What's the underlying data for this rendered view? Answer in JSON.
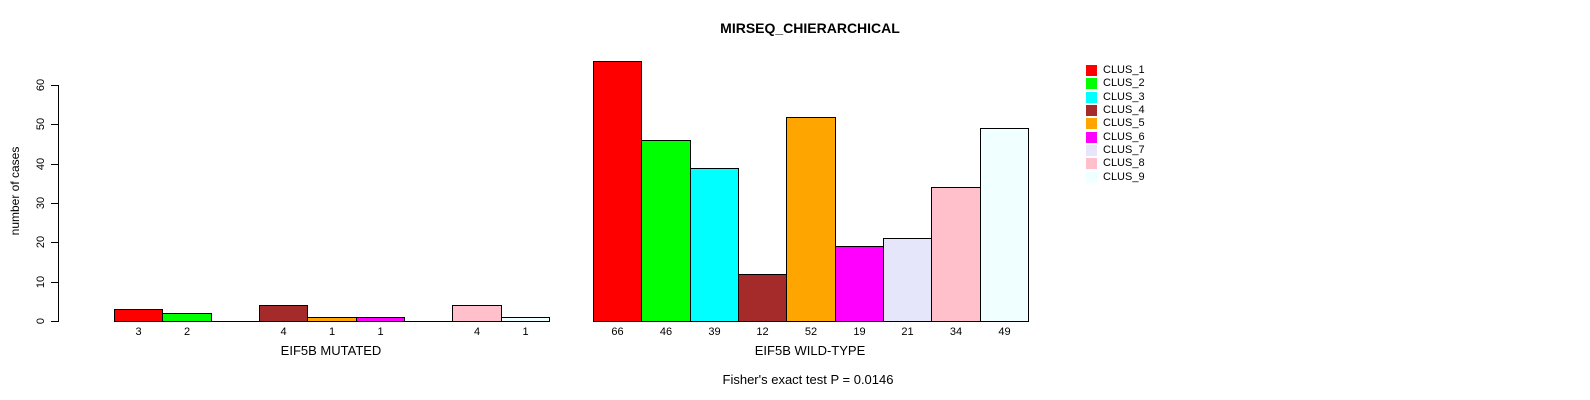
{
  "chart_data": {
    "type": "bar",
    "title": "MIRSEQ_CHIERARCHICAL",
    "ylabel": "number of cases",
    "ylim": [
      0,
      66
    ],
    "yticks": [
      0,
      10,
      20,
      30,
      40,
      50,
      60
    ],
    "grid": false,
    "background": "#ffffff",
    "axis_color": "#000000",
    "categories": [
      "CLUS_1",
      "CLUS_2",
      "CLUS_3",
      "CLUS_4",
      "CLUS_5",
      "CLUS_6",
      "CLUS_7",
      "CLUS_8",
      "CLUS_9"
    ],
    "colors": [
      "#FF0000",
      "#00FF00",
      "#00FFFF",
      "#A52A2A",
      "#FFA500",
      "#FF00FF",
      "#E6E6FA",
      "#FFC0CB",
      "#F0FFFF"
    ],
    "groups": [
      {
        "xlabel": "EIF5B MUTATED",
        "values": [
          3,
          2,
          0,
          4,
          1,
          1,
          0,
          4,
          1
        ]
      },
      {
        "xlabel": "EIF5B WILD-TYPE",
        "values": [
          66,
          46,
          39,
          12,
          52,
          19,
          21,
          34,
          49
        ]
      }
    ],
    "legend": {
      "position": "right",
      "entries": [
        {
          "label": "CLUS_1",
          "color": "#FF0000"
        },
        {
          "label": "CLUS_2",
          "color": "#00FF00"
        },
        {
          "label": "CLUS_3",
          "color": "#00FFFF"
        },
        {
          "label": "CLUS_4",
          "color": "#A52A2A"
        },
        {
          "label": "CLUS_5",
          "color": "#FFA500"
        },
        {
          "label": "CLUS_6",
          "color": "#FF00FF"
        },
        {
          "label": "CLUS_7",
          "color": "#E6E6FA"
        },
        {
          "label": "CLUS_8",
          "color": "#FFC0CB"
        },
        {
          "label": "CLUS_9",
          "color": "#F0FFFF"
        }
      ]
    },
    "annotation": "Fisher's exact test P = 0.0146"
  }
}
